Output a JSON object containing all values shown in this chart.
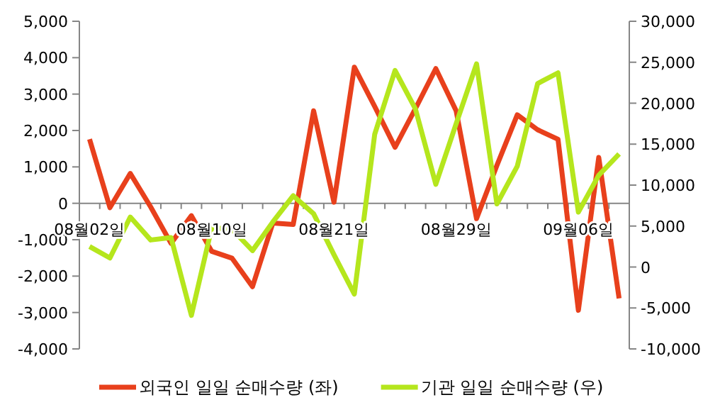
{
  "chart_data": {
    "type": "line",
    "categories": [
      "08월02일",
      null,
      null,
      null,
      null,
      null,
      "08월10일",
      null,
      null,
      null,
      null,
      null,
      "08월21일",
      null,
      null,
      null,
      null,
      null,
      "08월29일",
      null,
      null,
      null,
      null,
      null,
      "09월06일",
      null,
      null
    ],
    "series": [
      {
        "name": "외국인 일일 순매수량 (좌)",
        "color": "#e8401c",
        "axis": "y",
        "values": [
          1760,
          -120,
          820,
          -100,
          -1100,
          -340,
          -1320,
          -1510,
          -2290,
          -540,
          -580,
          2540,
          30,
          3740,
          2660,
          1540,
          2600,
          3700,
          2540,
          -420,
          1040,
          2430,
          2020,
          1760,
          -2940,
          1260,
          -2610
        ]
      },
      {
        "name": "기관 일일 순매수량 (우)",
        "color": "#b5e61d",
        "axis": "y2",
        "values": [
          2500,
          1100,
          6100,
          3300,
          3600,
          -5900,
          4800,
          4600,
          2000,
          5500,
          8700,
          6500,
          1500,
          -3300,
          16200,
          24000,
          19300,
          10100,
          17500,
          24800,
          7700,
          12300,
          22400,
          23700,
          6700,
          11200,
          13800
        ]
      }
    ],
    "ylim": [
      -4000,
      5000
    ],
    "yticks": [
      {
        "value": -4000,
        "label": "-4,000"
      },
      {
        "value": -3000,
        "label": "-3,000"
      },
      {
        "value": -2000,
        "label": "-2,000"
      },
      {
        "value": -1000,
        "label": "-1,000"
      },
      0,
      {
        "value": 1000,
        "label": "1,000"
      },
      {
        "value": 2000,
        "label": "2,000"
      },
      {
        "value": 3000,
        "label": "3,000"
      },
      {
        "value": 4000,
        "label": "4,000"
      },
      {
        "value": 5000,
        "label": "5,000"
      }
    ],
    "y2lim": [
      -10000,
      30000
    ],
    "y2ticks": [
      {
        "value": -10000,
        "label": "-10,000"
      },
      {
        "value": -5000,
        "label": "-5,000"
      },
      0,
      {
        "value": 5000,
        "label": "5,000"
      },
      {
        "value": 10000,
        "label": "10,000"
      },
      {
        "value": 15000,
        "label": "15,000"
      },
      {
        "value": 20000,
        "label": "20,000"
      },
      {
        "value": 25000,
        "label": "25,000"
      },
      {
        "value": 30000,
        "label": "30,000"
      }
    ],
    "legend": "bottom",
    "grid": false,
    "marker": "none",
    "line_style": "solid"
  }
}
